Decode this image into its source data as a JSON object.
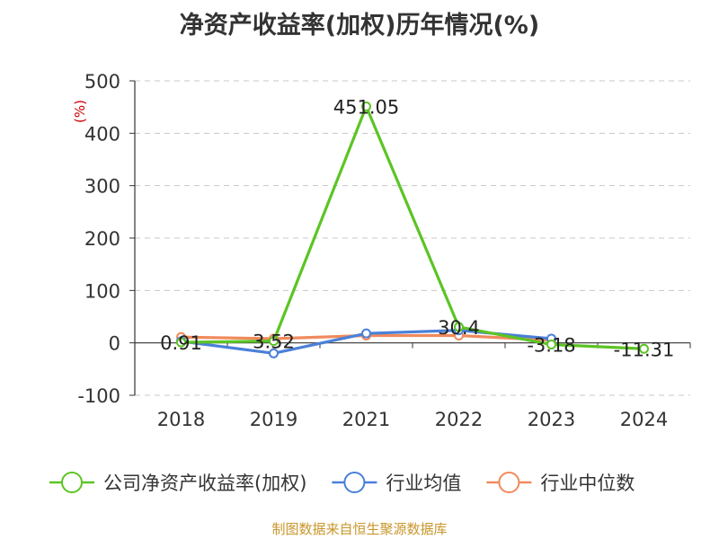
{
  "chart_data": {
    "type": "line",
    "title": "净资产收益率(加权)历年情况(%)",
    "ylabel": "(%)",
    "categories": [
      "2018",
      "2019",
      "2021",
      "2022",
      "2023",
      "2024"
    ],
    "ylim": [
      -100,
      500
    ],
    "yticks": [
      -100,
      0,
      100,
      200,
      300,
      400,
      500
    ],
    "grid": true,
    "legend_position": "bottom",
    "series": [
      {
        "name": "公司净资产收益率(加权)",
        "color": "#5cc424",
        "values": [
          0.91,
          3.52,
          451.05,
          30.4,
          -3.18,
          -11.31
        ],
        "labels": [
          "0.91",
          "3.52",
          "451.05",
          "30.4",
          "-3.18",
          "-11.31"
        ]
      },
      {
        "name": "行业均值",
        "color": "#4a80d8",
        "values": [
          3,
          -20,
          18,
          24,
          8,
          null
        ]
      },
      {
        "name": "行业中位数",
        "color": "#f08a5d",
        "values": [
          11,
          8,
          14,
          14,
          5,
          null
        ]
      }
    ]
  },
  "footer": {
    "source": "制图数据来自恒生聚源数据库"
  }
}
